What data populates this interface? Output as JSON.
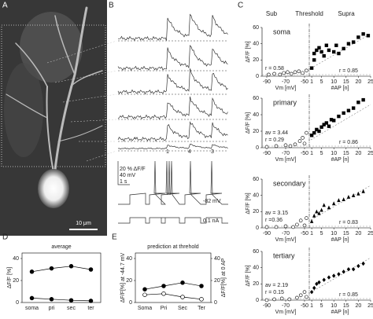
{
  "figure": {
    "panel_labels": [
      "A",
      "B",
      "C",
      "D",
      "E"
    ],
    "c_headers": [
      "Sub",
      "Threshold",
      "Supra"
    ],
    "scale_bar": "10 μm",
    "b_texts": {
      "star": "*",
      "spike_counts": [
        "1",
        "4",
        "3"
      ],
      "scale": [
        "20 % ΔF/F",
        "40 mV",
        "1 s"
      ],
      "holding": "-82 mV",
      "current": "0.1 nA"
    }
  },
  "chart_data": [
    {
      "type": "scatter",
      "title": "soma",
      "ylabel": "ΔF/F [%]",
      "ylim": [
        0,
        60
      ],
      "yticks": [
        0,
        20,
        40,
        60
      ],
      "marker": "square",
      "sub": {
        "xlabel": "Vm [mV]",
        "xlim": [
          -95,
          -45
        ],
        "xticks": [
          -90,
          -70,
          -50
        ],
        "x": [
          -88,
          -82,
          -76,
          -72,
          -68,
          -64,
          -60,
          -56,
          -52,
          -48
        ],
        "y": [
          2,
          3,
          2,
          4,
          5,
          3,
          5,
          6,
          4,
          7
        ]
      },
      "supra": {
        "xlabel": "#AP [n]",
        "xlim": [
          0,
          25
        ],
        "xticks": [
          1,
          5,
          10,
          15,
          20,
          25
        ],
        "x": [
          1,
          2,
          2,
          3,
          4,
          5,
          6,
          7,
          8,
          10,
          11,
          12,
          14,
          16,
          18,
          20,
          22,
          24
        ],
        "y": [
          10,
          20,
          28,
          32,
          35,
          30,
          25,
          38,
          32,
          30,
          38,
          28,
          34,
          40,
          42,
          48,
          52,
          50
        ]
      },
      "annotations": [
        "r = 0.58",
        "r = 0.85"
      ]
    },
    {
      "type": "scatter",
      "title": "primary",
      "ylabel": "ΔF/F [%]",
      "ylim": [
        0,
        60
      ],
      "yticks": [
        0,
        20,
        40,
        60
      ],
      "marker": "square",
      "sub": {
        "xlabel": "Vm [mV]",
        "xlim": [
          -95,
          -45
        ],
        "xticks": [
          -90,
          -70,
          -50
        ],
        "x": [
          -90,
          -80,
          -70,
          -65,
          -60,
          -55,
          -52,
          -50,
          -48
        ],
        "y": [
          1,
          2,
          3,
          2,
          4,
          8,
          12,
          5,
          18
        ]
      },
      "supra": {
        "xlabel": "#AP [n]",
        "xlim": [
          0,
          25
        ],
        "xticks": [
          1,
          5,
          10,
          15,
          20,
          25
        ],
        "x": [
          1,
          2,
          3,
          4,
          5,
          6,
          7,
          8,
          9,
          10,
          12,
          14,
          16,
          18,
          20,
          22
        ],
        "y": [
          15,
          18,
          22,
          20,
          25,
          28,
          30,
          26,
          34,
          33,
          38,
          42,
          45,
          48,
          55,
          58
        ]
      },
      "annotations": [
        "av = 3.44",
        "r = 0.29",
        "r = 0.86"
      ]
    },
    {
      "type": "scatter",
      "title": "secondary",
      "ylabel": "ΔF/F [%]",
      "ylim": [
        0,
        60
      ],
      "yticks": [
        0,
        20,
        40,
        60
      ],
      "marker": "triangle",
      "sub": {
        "xlabel": "Vm [mV]",
        "xlim": [
          -95,
          -45
        ],
        "xticks": [
          -90,
          -70,
          -50
        ],
        "x": [
          -90,
          -80,
          -70,
          -62,
          -58,
          -54,
          -50,
          -48
        ],
        "y": [
          1,
          1,
          2,
          1,
          4,
          9,
          3,
          12
        ]
      },
      "supra": {
        "xlabel": "#AP [n]",
        "xlim": [
          0,
          25
        ],
        "xticks": [
          1,
          5,
          10,
          15,
          20,
          25
        ],
        "x": [
          1,
          2,
          3,
          4,
          5,
          6,
          8,
          10,
          12,
          14,
          16,
          18,
          20,
          22
        ],
        "y": [
          8,
          15,
          20,
          18,
          22,
          28,
          25,
          30,
          34,
          35,
          38,
          40,
          42,
          45
        ]
      },
      "annotations": [
        "av = 3.15",
        "r =0.36",
        "r = 0.83"
      ]
    },
    {
      "type": "scatter",
      "title": "tertiary",
      "ylabel": "ΔF/F [%]",
      "ylim": [
        0,
        60
      ],
      "yticks": [
        0,
        20,
        40,
        60
      ],
      "marker": "diamond",
      "sub": {
        "xlabel": "Vm [mV]",
        "xlim": [
          -95,
          -45
        ],
        "xticks": [
          -90,
          -70,
          -50
        ],
        "x": [
          -90,
          -82,
          -74,
          -66,
          -58,
          -54,
          -50,
          -48
        ],
        "y": [
          0,
          1,
          2,
          1,
          3,
          6,
          10,
          4
        ]
      },
      "supra": {
        "xlabel": "#AP [n]",
        "xlim": [
          0,
          25
        ],
        "xticks": [
          1,
          5,
          10,
          15,
          20,
          25
        ],
        "x": [
          1,
          2,
          3,
          4,
          6,
          8,
          10,
          12,
          14,
          16,
          18,
          20,
          22
        ],
        "y": [
          10,
          15,
          20,
          22,
          25,
          28,
          30,
          32,
          35,
          38,
          38,
          42,
          45
        ]
      },
      "annotations": [
        "av = 2.19",
        "r = 0.15",
        "r = 0.85"
      ]
    },
    {
      "type": "line",
      "title": "average",
      "ylabel": "ΔF/F [%]",
      "ylim": [
        0,
        45
      ],
      "yticks": [
        0,
        20,
        40
      ],
      "categories": [
        "soma",
        "pri",
        "sec",
        "ter"
      ],
      "series": [
        {
          "values": [
            28,
            31,
            33,
            30
          ],
          "marker": "filled"
        },
        {
          "values": [
            4,
            3,
            2,
            1.5
          ],
          "marker": "filled"
        }
      ]
    },
    {
      "type": "line",
      "title": "prediction at threhold",
      "ylabel": "ΔF/F[%] at -44.7 mV",
      "y2label": "ΔF/F[%] at 0 AP",
      "ylim": [
        0,
        45
      ],
      "yticks": [
        0,
        20,
        40
      ],
      "y2lim": [
        0,
        45
      ],
      "y2ticks": [
        0,
        20,
        40
      ],
      "categories": [
        "Soma",
        "Pri",
        "Sec",
        "Ter"
      ],
      "series": [
        {
          "values": [
            12,
            15,
            18,
            15
          ],
          "marker": "filled"
        },
        {
          "values": [
            7,
            8,
            5,
            3
          ],
          "marker": "open",
          "axis": "y2"
        }
      ]
    }
  ]
}
